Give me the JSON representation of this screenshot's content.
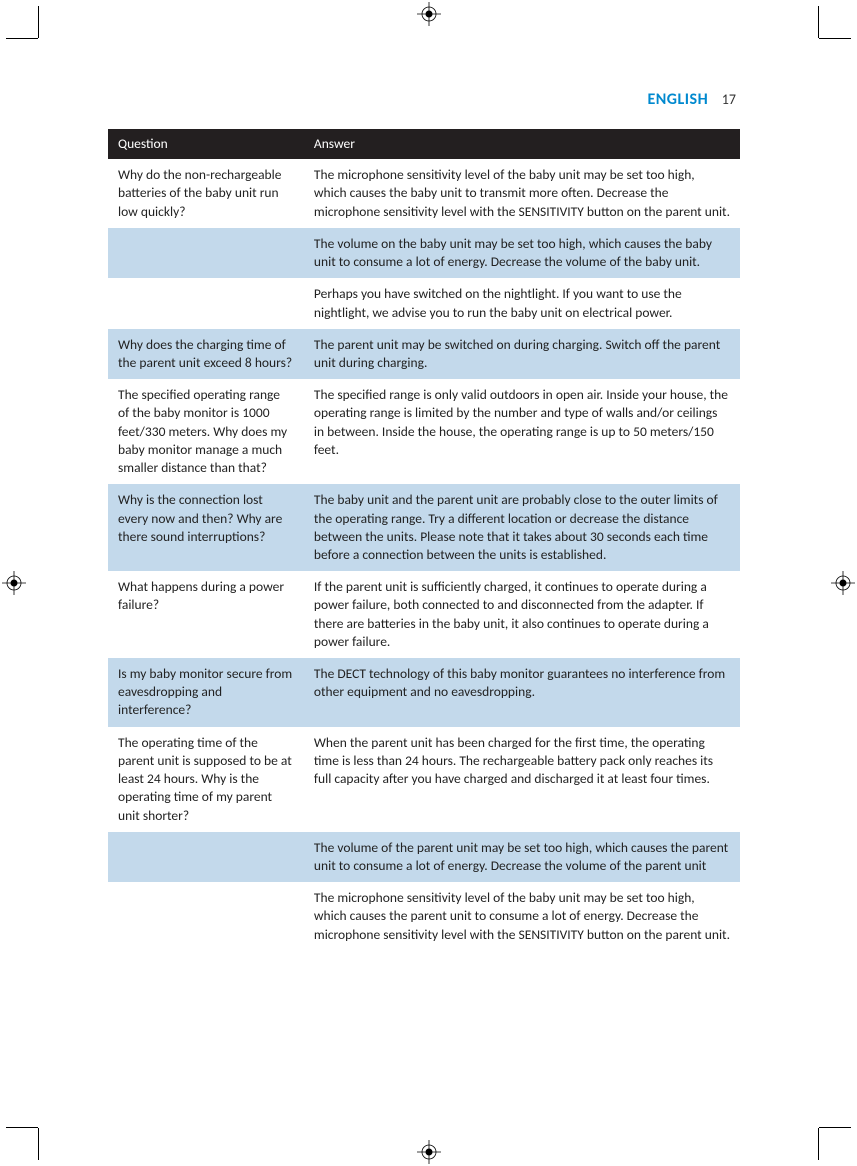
{
  "header": {
    "language": "ENGLISH",
    "page_number": "17"
  },
  "table": {
    "col_question": "Question",
    "col_answer": "Answer",
    "rows": [
      {
        "shade": "white",
        "q": "Why do the non-rechargeable batteries of the baby unit run low quickly?",
        "a": "The microphone sensitivity level of the baby unit may be set too high, which causes the baby unit to transmit more often. Decrease the microphone sensitivity level with the SENSITIVITY button on the parent unit."
      },
      {
        "shade": "blue",
        "q": "",
        "a": "The volume on the baby unit may be set too high, which causes the baby unit to consume a lot of energy. Decrease the volume of the baby unit."
      },
      {
        "shade": "white",
        "q": "",
        "a": "Perhaps you have switched on the nightlight. If you want to use the nightlight, we advise you to run the baby unit on electrical power."
      },
      {
        "shade": "blue",
        "q": "Why does the charging time of the parent unit exceed 8 hours?",
        "a": "The parent unit may be switched on during charging. Switch off the parent unit during charging."
      },
      {
        "shade": "white",
        "q": "The specified operating range of the baby monitor is 1000 feet/330 meters. Why does my baby monitor manage a much smaller distance than that?",
        "a": "The specified range is only valid outdoors in open air. Inside your house, the operating range is limited by the number and type of walls and/or ceilings in between. Inside the house, the operating range is up to 50 meters/150 feet."
      },
      {
        "shade": "blue",
        "q": "Why is the connection lost every now and then? Why are there sound interruptions?",
        "a": "The baby unit and the parent unit are probably close to the outer limits of the operating range. Try a different location or decrease the distance between the units. Please note that it takes about 30 seconds each time before a connection between the units is established."
      },
      {
        "shade": "white",
        "q": "What happens during a power failure?",
        "a": "If the parent unit is sufficiently charged, it continues to operate during a power failure, both connected to and disconnected from the adapter. If there are batteries in the baby unit, it also continues to operate during a power failure."
      },
      {
        "shade": "blue",
        "q": "Is my baby monitor secure from eavesdropping and interference?",
        "a": "The DECT technology of this baby monitor guarantees no interference from other equipment and no eavesdropping."
      },
      {
        "shade": "white",
        "q": "The operating time of the parent unit is supposed to be at least 24 hours. Why is the operating time of my parent unit shorter?",
        "a": "When the parent unit has been charged for the first time, the operating time is less than 24 hours. The rechargeable battery pack only reaches its full capacity after you have charged and discharged it at least four times."
      },
      {
        "shade": "blue",
        "q": "",
        "a": "The volume of the parent unit may be set too high, which causes the parent unit to consume a lot of energy. Decrease the volume of the parent unit"
      },
      {
        "shade": "white",
        "q": "",
        "a": "The microphone sensitivity level of the baby unit may be set too high, which causes the parent unit to consume a lot of energy. Decrease the microphone sensitivity level with the SENSITIVITY button on the parent unit."
      }
    ]
  }
}
